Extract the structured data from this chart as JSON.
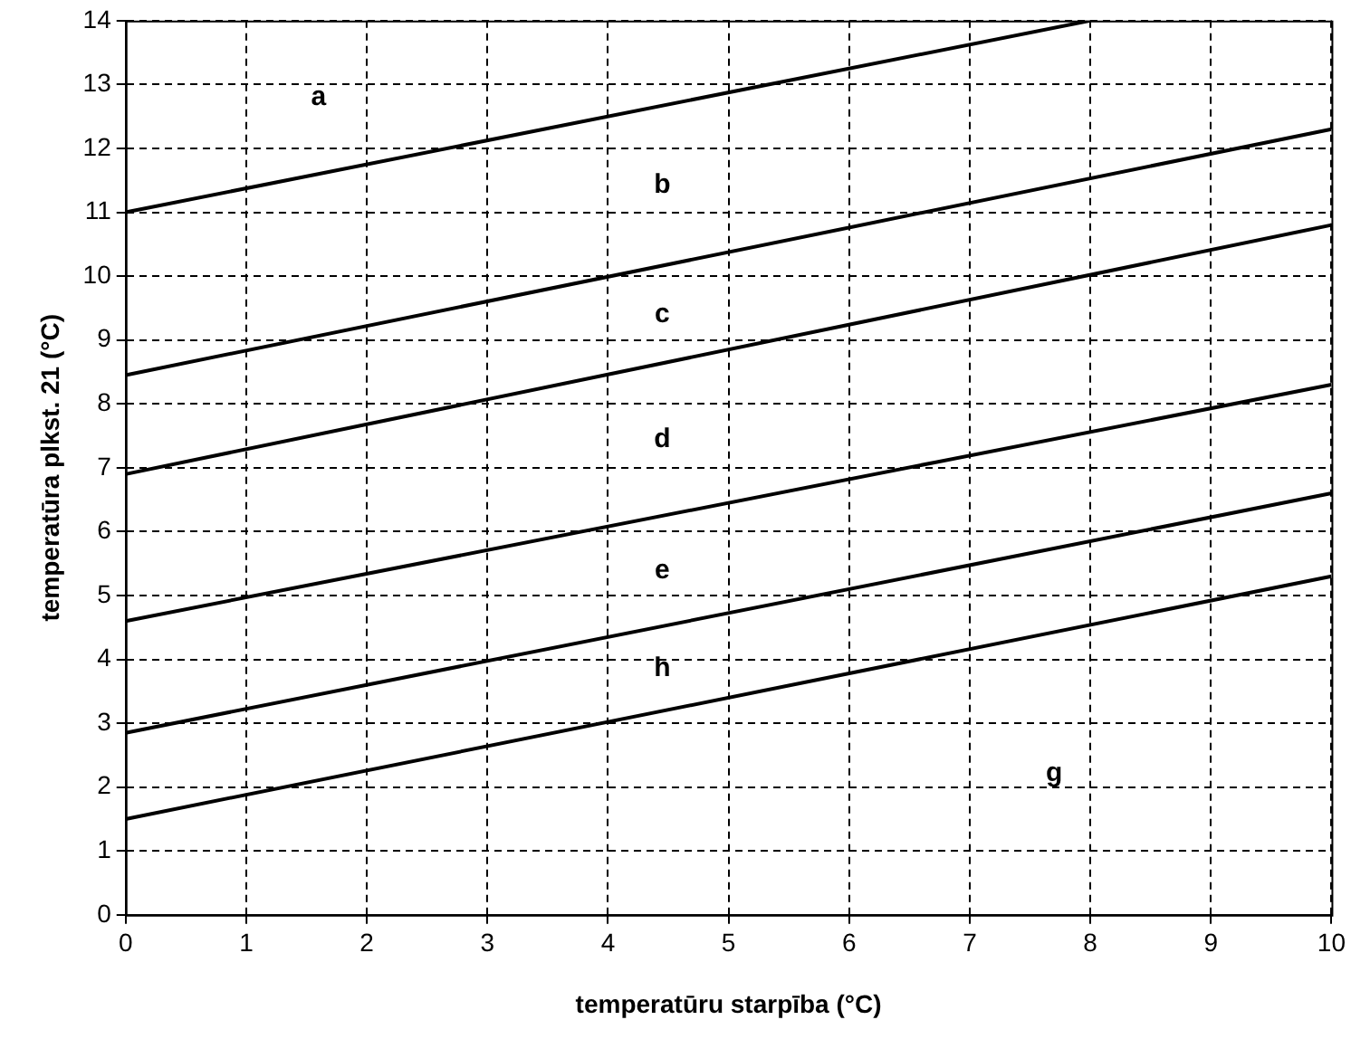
{
  "chart_data": {
    "type": "line",
    "xlabel": "temperatūru starpība (°C)",
    "ylabel": "temperatūra plkst. 21 (°C)",
    "xlim": [
      0,
      10
    ],
    "xticks": [
      0,
      1,
      2,
      3,
      4,
      5,
      6,
      7,
      8,
      9,
      10
    ],
    "ylim": [
      0,
      14
    ],
    "yticks": [
      0,
      1,
      2,
      3,
      4,
      5,
      6,
      7,
      8,
      9,
      10,
      11,
      12,
      13,
      14
    ],
    "grid": true,
    "legend": false,
    "marker": "none",
    "line_style": "solid",
    "series": [
      {
        "color": "#000000",
        "x": [
          0,
          8
        ],
        "values": [
          11.0,
          14.0
        ]
      },
      {
        "color": "#000000",
        "x": [
          0,
          10
        ],
        "values": [
          8.45,
          12.3
        ]
      },
      {
        "color": "#000000",
        "x": [
          0,
          10
        ],
        "values": [
          6.9,
          10.8
        ]
      },
      {
        "color": "#000000",
        "x": [
          0,
          10
        ],
        "values": [
          4.6,
          8.3
        ]
      },
      {
        "color": "#000000",
        "x": [
          0,
          10
        ],
        "values": [
          2.85,
          6.6
        ]
      },
      {
        "color": "#000000",
        "x": [
          0,
          10
        ],
        "values": [
          1.5,
          5.3
        ]
      }
    ],
    "annotations": [
      "a",
      "b",
      "c",
      "d",
      "e",
      "h",
      "g"
    ]
  }
}
